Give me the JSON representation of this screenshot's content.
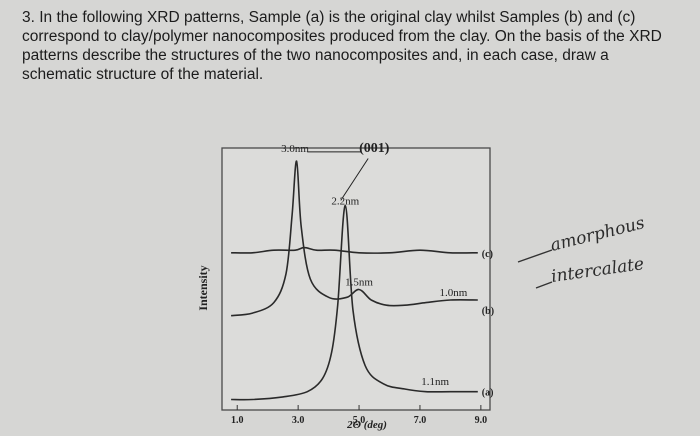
{
  "question": {
    "number": "3.",
    "text": "In the following XRD patterns, Sample (a) is the original clay whilst Samples (b) and (c) correspond to clay/polymer nanocomposites produced from the clay. On the basis of the XRD patterns describe the structures of the two nanocomposites and, in each case, draw a schematic structure of the material."
  },
  "handwriting": {
    "line1": "amorphous",
    "line2": "intercalate"
  },
  "chart_data": {
    "type": "line",
    "xlabel": "2Θ (deg)",
    "ylabel": "Intensity",
    "xlim": [
      0.5,
      9.3
    ],
    "ylim": [
      0,
      1
    ],
    "x_ticks": [
      1.0,
      3.0,
      5.0,
      7.0,
      9.0
    ],
    "x_tick_labels": [
      "1.0",
      "3.0",
      "5.0",
      "7.0",
      "9.0"
    ],
    "series": [
      {
        "name": "(c)",
        "x": [
          0.8,
          1.5,
          2.2,
          2.9,
          3.2,
          3.6,
          4.2,
          5.0,
          6.0,
          7.0,
          8.0,
          8.9
        ],
        "y": [
          0.6,
          0.6,
          0.61,
          0.61,
          0.62,
          0.61,
          0.61,
          0.6,
          0.6,
          0.61,
          0.6,
          0.6
        ]
      },
      {
        "name": "(b)",
        "x": [
          0.8,
          1.5,
          2.2,
          2.6,
          2.8,
          2.95,
          3.1,
          3.4,
          4.0,
          4.6,
          5.0,
          5.4,
          5.9,
          6.5,
          7.2,
          8.0,
          8.9
        ],
        "y": [
          0.36,
          0.37,
          0.41,
          0.52,
          0.74,
          0.95,
          0.7,
          0.5,
          0.43,
          0.43,
          0.46,
          0.42,
          0.4,
          0.4,
          0.41,
          0.42,
          0.42
        ]
      },
      {
        "name": "(a)",
        "x": [
          0.8,
          1.5,
          2.5,
          3.3,
          3.8,
          4.1,
          4.3,
          4.55,
          4.8,
          5.2,
          5.8,
          6.5,
          7.2,
          8.0,
          8.9
        ],
        "y": [
          0.04,
          0.04,
          0.05,
          0.07,
          0.12,
          0.22,
          0.4,
          0.78,
          0.38,
          0.17,
          0.1,
          0.08,
          0.07,
          0.07,
          0.07
        ]
      }
    ],
    "annotations": [
      {
        "text": "3.0nm",
        "x": 2.9,
        "y": 1.0
      },
      {
        "text": "(001)",
        "x": 5.5,
        "y": 1.0
      },
      {
        "text": "2.2nm",
        "x": 4.55,
        "y": 0.8
      },
      {
        "text": "1.5nm",
        "x": 5.0,
        "y": 0.49
      },
      {
        "text": "1.0nm",
        "x": 8.1,
        "y": 0.45
      },
      {
        "text": "1.1nm",
        "x": 7.5,
        "y": 0.11
      }
    ],
    "grid": false,
    "legend": "curve end labels at right"
  }
}
